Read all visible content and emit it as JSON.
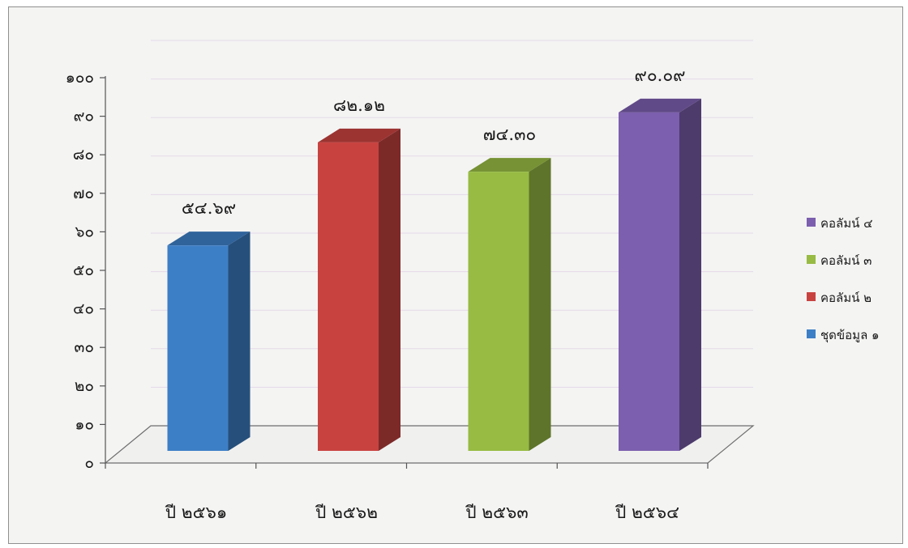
{
  "chart_data": {
    "type": "bar",
    "categories": [
      "ปี ๒๕๖๑",
      "ปี ๒๕๖๒",
      "ปี ๒๕๖๓",
      "ปี ๒๕๖๔"
    ],
    "values": [
      54.69,
      82.12,
      74.3,
      90.09
    ],
    "data_labels": [
      "๕๔.๖๙",
      "๘๒.๑๒",
      "๗๔.๓๐",
      "๙๐.๐๙"
    ],
    "bar_colors": [
      "#3d7fc6",
      "#c84340",
      "#97bb43",
      "#7c5fae"
    ],
    "series": [
      {
        "name": "คอลัมน์ ๔",
        "color": "#7c5fae"
      },
      {
        "name": "คอลัมน์ ๓",
        "color": "#97bb43"
      },
      {
        "name": "คอลัมน์ ๒",
        "color": "#c84340"
      },
      {
        "name": "ชุดข้อมูล ๑",
        "color": "#3d7fc6"
      }
    ],
    "y_ticks": [
      0,
      10,
      20,
      30,
      40,
      50,
      60,
      70,
      80,
      90,
      100
    ],
    "y_tick_labels": [
      "๐",
      "๑๐",
      "๒๐",
      "๓๐",
      "๔๐",
      "๕๐",
      "๖๐",
      "๗๐",
      "๘๐",
      "๙๐",
      "๑๐๐"
    ],
    "ylim": [
      0,
      100
    ],
    "title": "",
    "xlabel": "",
    "ylabel": "",
    "legend_position": "right",
    "style": "3d-column",
    "grid": true
  }
}
